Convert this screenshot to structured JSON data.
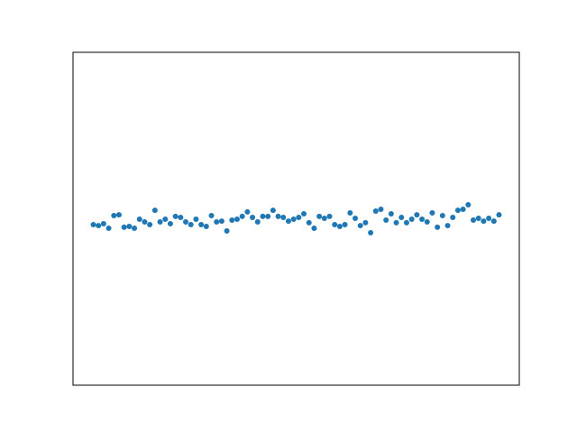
{
  "chart_data": {
    "type": "scatter",
    "color": "#1f77b4",
    "x": [
      0,
      1,
      2,
      3,
      4,
      5,
      6,
      7,
      8,
      9,
      10,
      11,
      12,
      13,
      14,
      15,
      16,
      17,
      18,
      19,
      20,
      21,
      22,
      23,
      24,
      25,
      26,
      27,
      28,
      29,
      30,
      31,
      32,
      33,
      34,
      35,
      36,
      37,
      38,
      39,
      40,
      41,
      42,
      43,
      44,
      45,
      46,
      47,
      48,
      49,
      50,
      51,
      52,
      53,
      54,
      55,
      56,
      57,
      58,
      59,
      60,
      61,
      62,
      63,
      64,
      65,
      66,
      67,
      68,
      69,
      70,
      71,
      72,
      73,
      74,
      75,
      76,
      77,
      78,
      79
    ],
    "y": [
      -0.035,
      -0.041,
      -0.03,
      -0.057,
      0.019,
      0.024,
      -0.051,
      -0.046,
      -0.057,
      -0.003,
      -0.019,
      -0.035,
      0.051,
      -0.019,
      -0.003,
      -0.03,
      0.014,
      0.008,
      -0.019,
      -0.035,
      -0.003,
      -0.035,
      -0.046,
      0.019,
      -0.019,
      -0.014,
      -0.073,
      -0.008,
      -0.003,
      0.014,
      0.041,
      0.008,
      -0.019,
      0.014,
      0.014,
      0.051,
      0.014,
      0.008,
      -0.014,
      -0.003,
      0.008,
      0.03,
      -0.024,
      -0.057,
      0.014,
      0.003,
      0.014,
      -0.035,
      -0.046,
      -0.035,
      0.035,
      0.003,
      -0.041,
      -0.024,
      -0.084,
      0.046,
      0.057,
      -0.008,
      0.03,
      -0.024,
      0.008,
      -0.024,
      -0.003,
      0.024,
      -0.003,
      -0.019,
      0.035,
      -0.051,
      0.019,
      -0.041,
      0.008,
      0.051,
      0.057,
      0.084,
      -0.008,
      0.003,
      -0.014,
      0.003,
      -0.014,
      0.024
    ],
    "xlim": [
      -3.95,
      82.95
    ],
    "ylim": [
      -1,
      1
    ]
  }
}
